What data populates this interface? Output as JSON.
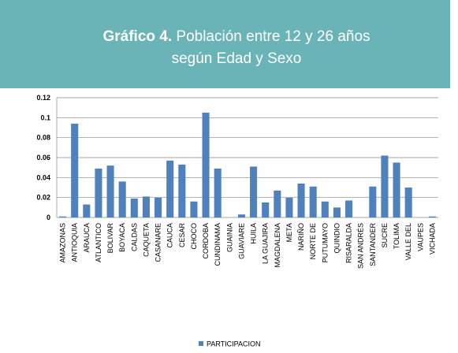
{
  "chart_data": {
    "type": "bar",
    "title_bold": "Gráfico 4.",
    "title_rest": "Población entre 12 y 26 años",
    "title_line2": "según Edad y Sexo",
    "categories": [
      "AMAZONAS",
      "ANTIOQUIA",
      "ARAUCA",
      "ATLANTICO",
      "BOLIVAR",
      "BOYACA",
      "CALDAS",
      "CAQUETA",
      "CASANARE",
      "CAUCA",
      "CESAR",
      "CHOCO",
      "CORDOBA",
      "CUNDINAMA",
      "GUAINIA",
      "GUAVIARE",
      "HUILA",
      "LA GUAJIRA",
      "MAGDALENA",
      "META",
      "NARIÑO",
      "NORTE DE",
      "PUTUMAYO",
      "QUINDIO",
      "RISARALDA",
      "SAN ANDRÉS",
      "SANTANDER",
      "SUCRE",
      "TOLIMA",
      "VALLE DEL",
      "VAUPES",
      "VICHADA"
    ],
    "series": [
      {
        "name": "PARTICIPACION",
        "color": "#4f81bd",
        "values": [
          0.001,
          0.094,
          0.013,
          0.049,
          0.052,
          0.036,
          0.019,
          0.021,
          0.02,
          0.057,
          0.053,
          0.016,
          0.105,
          0.049,
          0,
          0.003,
          0.051,
          0.015,
          0.027,
          0.02,
          0.034,
          0.031,
          0.016,
          0.01,
          0.017,
          0,
          0.031,
          0.062,
          0.055,
          0.03,
          0,
          0.001
        ]
      }
    ],
    "ylim": [
      0,
      0.12
    ],
    "yticks": [
      0,
      0.02,
      0.04,
      0.06,
      0.08,
      0.1,
      0.12
    ],
    "grid": true,
    "legend": "bottom"
  }
}
